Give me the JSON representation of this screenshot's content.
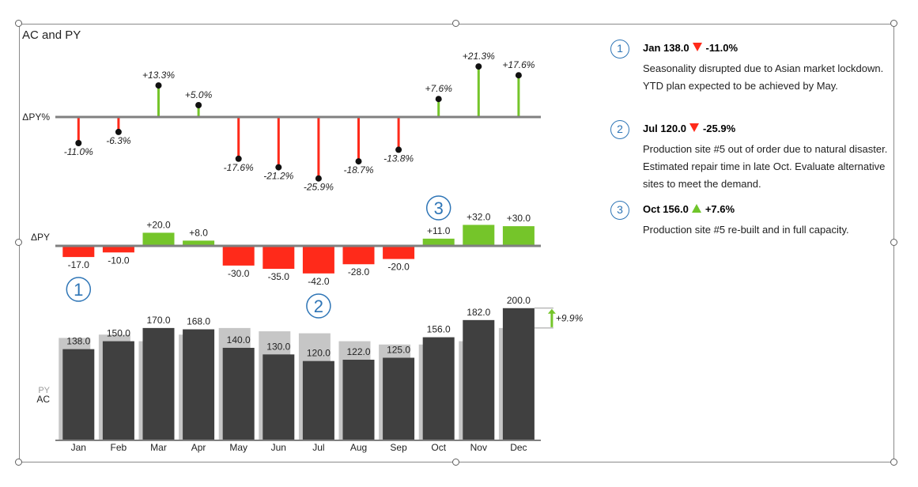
{
  "chart_data": {
    "type": "bar",
    "title": "AC and PY",
    "categories": [
      "Jan",
      "Feb",
      "Mar",
      "Apr",
      "May",
      "Jun",
      "Jul",
      "Aug",
      "Sep",
      "Oct",
      "Nov",
      "Dec"
    ],
    "series": [
      {
        "name": "PY",
        "values": [
          155.0,
          160.0,
          150.0,
          160.0,
          170.0,
          165.0,
          162.0,
          150.0,
          145.0,
          145.0,
          150.0,
          170.0
        ]
      },
      {
        "name": "AC",
        "values": [
          138.0,
          150.0,
          170.0,
          168.0,
          140.0,
          130.0,
          120.0,
          122.0,
          125.0,
          156.0,
          182.0,
          200.0
        ]
      }
    ],
    "ac_labels": [
      "138.0",
      "150.0",
      "170.0",
      "168.0",
      "140.0",
      "130.0",
      "120.0",
      "122.0",
      "125.0",
      "156.0",
      "182.0",
      "200.0"
    ],
    "delta_py": {
      "label": "ΔPY",
      "values": [
        -17.0,
        -10.0,
        20.0,
        8.0,
        -30.0,
        -35.0,
        -42.0,
        -28.0,
        -20.0,
        11.0,
        32.0,
        30.0
      ],
      "labels": [
        "-17.0",
        "-10.0",
        "+20.0",
        "+8.0",
        "-30.0",
        "-35.0",
        "-42.0",
        "-28.0",
        "-20.0",
        "+11.0",
        "+32.0",
        "+30.0"
      ]
    },
    "delta_py_pct": {
      "label": "ΔPY%",
      "values": [
        -11.0,
        -6.3,
        13.3,
        5.0,
        -17.6,
        -21.2,
        -25.9,
        -18.7,
        -13.8,
        7.6,
        21.3,
        17.6
      ],
      "labels": [
        "-11.0%",
        "-6.3%",
        "+13.3%",
        "+5.0%",
        "-17.6%",
        "-21.2%",
        "-25.9%",
        "-18.7%",
        "-13.8%",
        "+7.6%",
        "+21.3%",
        "+17.6%"
      ]
    },
    "row_labels": {
      "py": "PY",
      "ac": "AC"
    },
    "dec_difference_label": "+9.9%",
    "markers": [
      {
        "number": "1",
        "category": "Jan"
      },
      {
        "number": "2",
        "category": "Jul"
      },
      {
        "number": "3",
        "category": "Oct"
      }
    ],
    "colors": {
      "ac": "#404040",
      "py": "#c6c6c6",
      "positive": "#75c52a",
      "negative": "#ff2a1a",
      "axis": "#808080",
      "marker": "#2e75b6"
    }
  },
  "annotations": [
    {
      "number": "1",
      "heading_value": "Jan 138.0",
      "direction": "down",
      "delta": "-11.0%",
      "text": "Seasonality disrupted due to Asian market lockdown. YTD plan expected to be achieved by May."
    },
    {
      "number": "2",
      "heading_value": "Jul 120.0",
      "direction": "down",
      "delta": "-25.9%",
      "text": "Production site #5 out of order due to natural disaster. Estimated repair time in late Oct. Evaluate alternative sites to meet the demand."
    },
    {
      "number": "3",
      "heading_value": "Oct 156.0",
      "direction": "up",
      "delta": "+7.6%",
      "text": "Production site #5 re-built and in full capacity."
    }
  ]
}
